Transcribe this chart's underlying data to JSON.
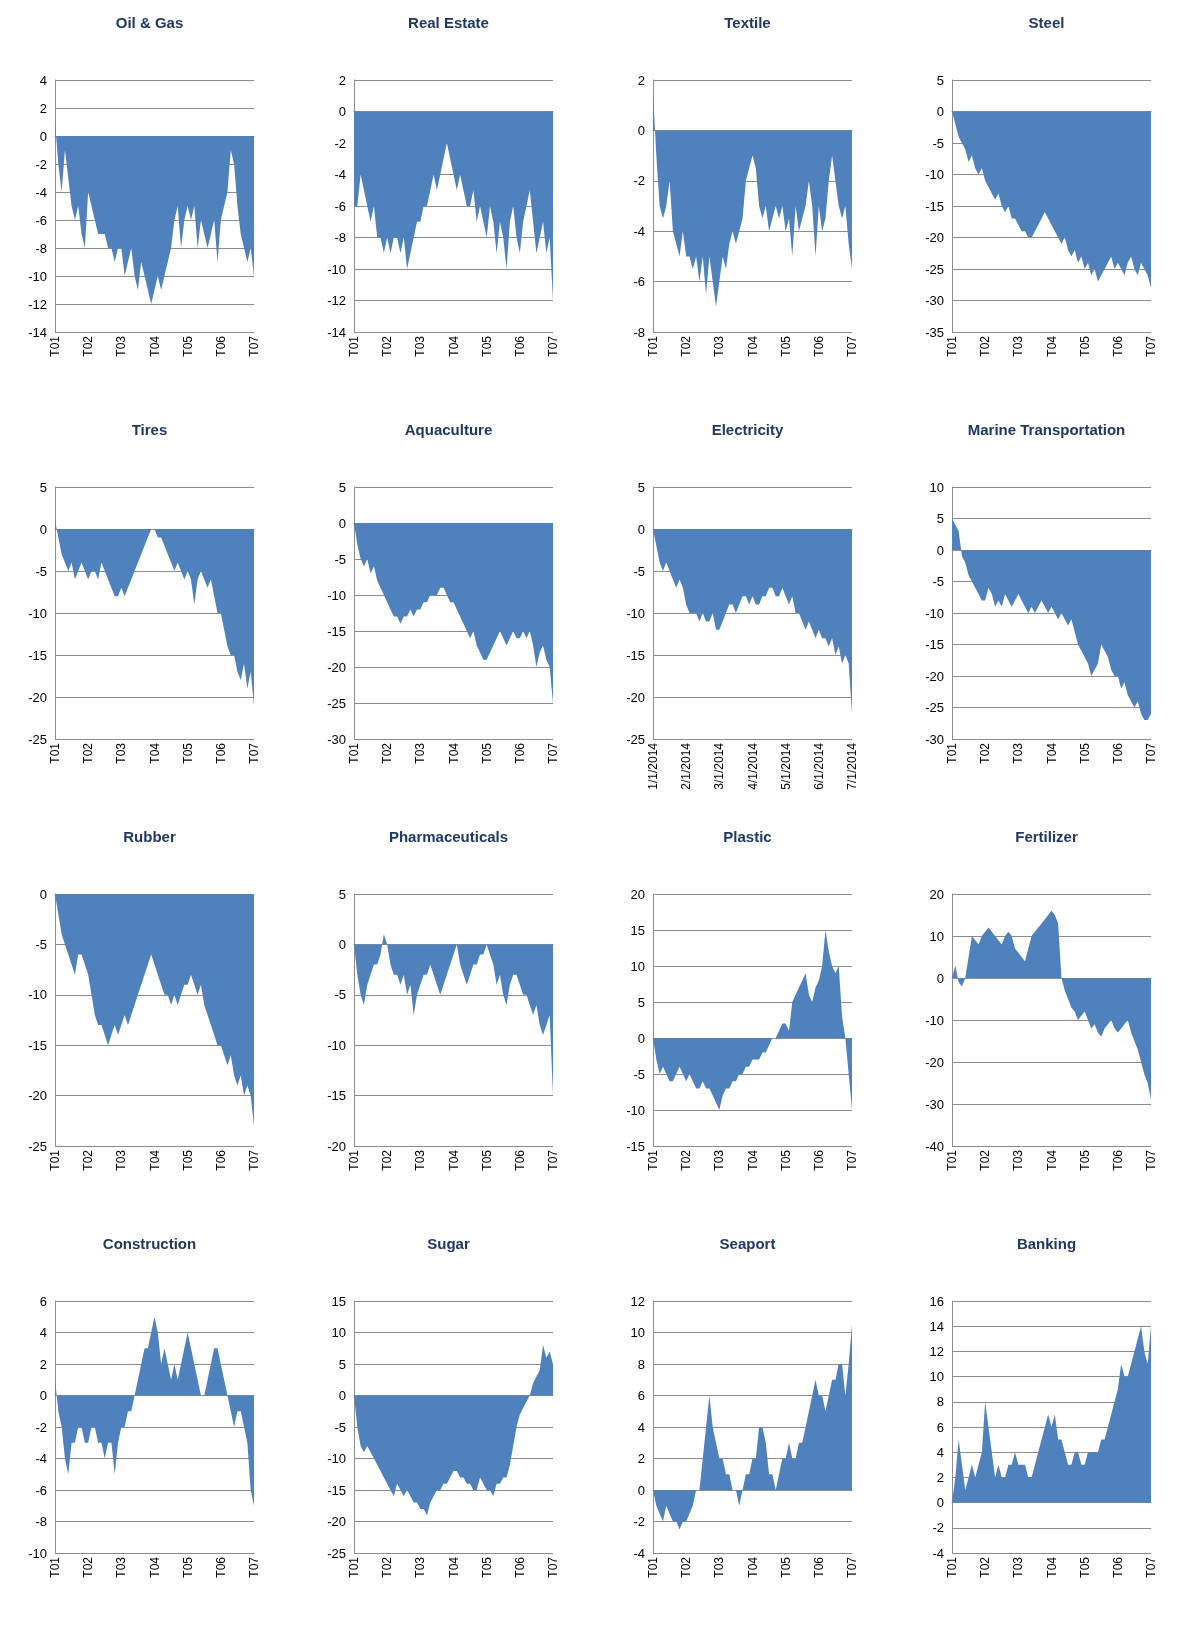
{
  "chart_data": [
    {
      "type": "area",
      "title": "Oil & Gas",
      "color": "#4f81bd",
      "grid": "y",
      "marker": "none",
      "ylim": [
        -14,
        4
      ],
      "yticks": [
        -14,
        -12,
        -10,
        -8,
        -6,
        -4,
        -2,
        0,
        2,
        4
      ],
      "categories": [
        "T01",
        null,
        null,
        null,
        null,
        null,
        null,
        null,
        null,
        null,
        "T02",
        null,
        null,
        null,
        null,
        null,
        null,
        null,
        null,
        null,
        "T03",
        null,
        null,
        null,
        null,
        null,
        null,
        null,
        null,
        null,
        "T04",
        null,
        null,
        null,
        null,
        null,
        null,
        null,
        null,
        null,
        "T05",
        null,
        null,
        null,
        null,
        null,
        null,
        null,
        null,
        null,
        "T06",
        null,
        null,
        null,
        null,
        null,
        null,
        null,
        null,
        null,
        "T07"
      ],
      "values": [
        1,
        -2,
        -4,
        -1,
        -3,
        -5,
        -6,
        -5,
        -7,
        -8,
        -4,
        -5,
        -6,
        -7,
        -7,
        -7,
        -8,
        -8,
        -9,
        -8,
        -8,
        -10,
        -9,
        -8,
        -10,
        -11,
        -9,
        -10,
        -11,
        -12,
        -11,
        -10,
        -11,
        -10,
        -9,
        -8,
        -6,
        -5,
        -8,
        -6,
        -5,
        -6,
        -5,
        -8,
        -6,
        -7,
        -8,
        -7,
        -6,
        -9,
        -6,
        -5,
        -4,
        -1,
        -2,
        -5,
        -7,
        -8,
        -9,
        -8,
        -10
      ]
    },
    {
      "type": "area",
      "title": "Real Estate",
      "color": "#4f81bd",
      "grid": "y",
      "marker": "none",
      "ylim": [
        -14,
        2
      ],
      "yticks": [
        -14,
        -12,
        -10,
        -8,
        -6,
        -4,
        -2,
        0,
        2
      ],
      "categories": [
        "T01",
        null,
        null,
        null,
        null,
        null,
        null,
        null,
        null,
        null,
        "T02",
        null,
        null,
        null,
        null,
        null,
        null,
        null,
        null,
        null,
        "T03",
        null,
        null,
        null,
        null,
        null,
        null,
        null,
        null,
        null,
        "T04",
        null,
        null,
        null,
        null,
        null,
        null,
        null,
        null,
        null,
        "T05",
        null,
        null,
        null,
        null,
        null,
        null,
        null,
        null,
        null,
        "T06",
        null,
        null,
        null,
        null,
        null,
        null,
        null,
        null,
        null,
        "T07"
      ],
      "values": [
        -6,
        -6,
        -4,
        -5,
        -6,
        -7,
        -6,
        -8,
        -8,
        -9,
        -8,
        -9,
        -8,
        -8,
        -9,
        -8,
        -10,
        -9,
        -8,
        -7,
        -7,
        -6,
        -6,
        -5,
        -4,
        -5,
        -4,
        -3,
        -2,
        -3,
        -4,
        -5,
        -4,
        -5,
        -6,
        -6,
        -5,
        -7,
        -6,
        -7,
        -8,
        -6,
        -7,
        -9,
        -7,
        -8,
        -10,
        -7,
        -6,
        -8,
        -9,
        -7,
        -6,
        -5,
        -7,
        -9,
        -8,
        -7,
        -9,
        -8,
        -12
      ]
    },
    {
      "type": "area",
      "title": "Textile",
      "color": "#4f81bd",
      "grid": "y",
      "marker": "none",
      "ylim": [
        -8,
        2
      ],
      "yticks": [
        -8,
        -6,
        -4,
        -2,
        0,
        2
      ],
      "categories": [
        "T01",
        null,
        null,
        null,
        null,
        null,
        null,
        null,
        null,
        null,
        "T02",
        null,
        null,
        null,
        null,
        null,
        null,
        null,
        null,
        null,
        "T03",
        null,
        null,
        null,
        null,
        null,
        null,
        null,
        null,
        null,
        "T04",
        null,
        null,
        null,
        null,
        null,
        null,
        null,
        null,
        null,
        "T05",
        null,
        null,
        null,
        null,
        null,
        null,
        null,
        null,
        null,
        "T06",
        null,
        null,
        null,
        null,
        null,
        null,
        null,
        null,
        null,
        "T07"
      ],
      "values": [
        1.5,
        -1,
        -3,
        -3.5,
        -3,
        -2,
        -4,
        -4.5,
        -5,
        -4,
        -5,
        -5,
        -5.5,
        -5,
        -6,
        -5,
        -6.5,
        -5,
        -6,
        -7,
        -6,
        -5,
        -5.5,
        -4.5,
        -4,
        -4.5,
        -4,
        -3.5,
        -2,
        -1.5,
        -1,
        -1.5,
        -3,
        -3.5,
        -3,
        -4,
        -3.5,
        -3,
        -3.5,
        -3,
        -4,
        -3.5,
        -5,
        -3,
        -4,
        -3.5,
        -3,
        -2,
        -3,
        -5,
        -3,
        -4,
        -3.5,
        -2,
        -1,
        -2,
        -3,
        -3.5,
        -3,
        -4.5,
        -5.5
      ]
    },
    {
      "type": "area",
      "title": "Steel",
      "color": "#4f81bd",
      "grid": "y",
      "marker": "none",
      "ylim": [
        -35,
        5
      ],
      "yticks": [
        -35,
        -30,
        -25,
        -20,
        -15,
        -10,
        -5,
        0,
        5
      ],
      "categories": [
        "T01",
        null,
        null,
        null,
        null,
        null,
        null,
        null,
        null,
        null,
        "T02",
        null,
        null,
        null,
        null,
        null,
        null,
        null,
        null,
        null,
        "T03",
        null,
        null,
        null,
        null,
        null,
        null,
        null,
        null,
        null,
        "T04",
        null,
        null,
        null,
        null,
        null,
        null,
        null,
        null,
        null,
        "T05",
        null,
        null,
        null,
        null,
        null,
        null,
        null,
        null,
        null,
        "T06",
        null,
        null,
        null,
        null,
        null,
        null,
        null,
        null,
        null,
        "T07"
      ],
      "values": [
        0,
        -2,
        -4,
        -5,
        -6,
        -8,
        -7,
        -9,
        -10,
        -9,
        -11,
        -12,
        -13,
        -14,
        -13,
        -15,
        -16,
        -15,
        -17,
        -17,
        -18,
        -19,
        -19,
        -20,
        -20,
        -19,
        -18,
        -17,
        -16,
        -17,
        -18,
        -19,
        -20,
        -21,
        -20,
        -22,
        -23,
        -22,
        -24,
        -23,
        -25,
        -24,
        -26,
        -25,
        -27,
        -26,
        -25,
        -24,
        -23,
        -25,
        -24,
        -25,
        -26,
        -24,
        -23,
        -25,
        -26,
        -24,
        -25,
        -26,
        -28
      ]
    },
    {
      "type": "area",
      "title": "Tires",
      "color": "#4f81bd",
      "grid": "y",
      "marker": "none",
      "ylim": [
        -25,
        5
      ],
      "yticks": [
        -25,
        -20,
        -15,
        -10,
        -5,
        0,
        5
      ],
      "categories": [
        "T01",
        null,
        null,
        null,
        null,
        null,
        null,
        null,
        null,
        null,
        "T02",
        null,
        null,
        null,
        null,
        null,
        null,
        null,
        null,
        null,
        "T03",
        null,
        null,
        null,
        null,
        null,
        null,
        null,
        null,
        null,
        "T04",
        null,
        null,
        null,
        null,
        null,
        null,
        null,
        null,
        null,
        "T05",
        null,
        null,
        null,
        null,
        null,
        null,
        null,
        null,
        null,
        "T06",
        null,
        null,
        null,
        null,
        null,
        null,
        null,
        null,
        null,
        "T07"
      ],
      "values": [
        1,
        -1,
        -3,
        -4,
        -5,
        -4,
        -6,
        -5,
        -4,
        -5,
        -6,
        -5,
        -5,
        -6,
        -4,
        -5,
        -6,
        -7,
        -8,
        -8,
        -7,
        -8,
        -7,
        -6,
        -5,
        -4,
        -3,
        -2,
        -1,
        0,
        0,
        -1,
        -1,
        -2,
        -3,
        -4,
        -5,
        -4,
        -5,
        -6,
        -5,
        -6,
        -9,
        -6,
        -5,
        -6,
        -7,
        -6,
        -8,
        -10,
        -10,
        -12,
        -14,
        -15,
        -15,
        -17,
        -18,
        -16,
        -19,
        -17,
        -21
      ]
    },
    {
      "type": "area",
      "title": "Aquaculture",
      "color": "#4f81bd",
      "grid": "y",
      "marker": "none",
      "ylim": [
        -30,
        5
      ],
      "yticks": [
        -30,
        -25,
        -20,
        -15,
        -10,
        -5,
        0,
        5
      ],
      "categories": [
        "T01",
        null,
        null,
        null,
        null,
        null,
        null,
        null,
        null,
        null,
        "T02",
        null,
        null,
        null,
        null,
        null,
        null,
        null,
        null,
        null,
        "T03",
        null,
        null,
        null,
        null,
        null,
        null,
        null,
        null,
        null,
        "T04",
        null,
        null,
        null,
        null,
        null,
        null,
        null,
        null,
        null,
        "T05",
        null,
        null,
        null,
        null,
        null,
        null,
        null,
        null,
        null,
        "T06",
        null,
        null,
        null,
        null,
        null,
        null,
        null,
        null,
        null,
        "T07"
      ],
      "values": [
        0,
        -3,
        -5,
        -6,
        -5,
        -7,
        -6,
        -8,
        -9,
        -10,
        -11,
        -12,
        -13,
        -13,
        -14,
        -13,
        -13,
        -12,
        -13,
        -12,
        -12,
        -11,
        -11,
        -10,
        -10,
        -10,
        -9,
        -9,
        -10,
        -11,
        -11,
        -12,
        -13,
        -14,
        -15,
        -16,
        -15,
        -17,
        -18,
        -19,
        -19,
        -18,
        -17,
        -16,
        -15,
        -16,
        -17,
        -16,
        -15,
        -16,
        -16,
        -15,
        -16,
        -15,
        -17,
        -20,
        -18,
        -17,
        -19,
        -20,
        -25
      ]
    },
    {
      "type": "area",
      "title": "Electricity",
      "color": "#4f81bd",
      "grid": "y",
      "marker": "none",
      "ylim": [
        -25,
        5
      ],
      "yticks": [
        -25,
        -20,
        -15,
        -10,
        -5,
        0,
        5
      ],
      "categories": [
        "1/1/2014",
        null,
        null,
        null,
        null,
        null,
        null,
        null,
        null,
        null,
        "2/1/2014",
        null,
        null,
        null,
        null,
        null,
        null,
        null,
        null,
        null,
        "3/1/2014",
        null,
        null,
        null,
        null,
        null,
        null,
        null,
        null,
        null,
        "4/1/2014",
        null,
        null,
        null,
        null,
        null,
        null,
        null,
        null,
        null,
        "5/1/2014",
        null,
        null,
        null,
        null,
        null,
        null,
        null,
        null,
        null,
        "6/1/2014",
        null,
        null,
        null,
        null,
        null,
        null,
        null,
        null,
        null,
        "7/1/2014"
      ],
      "values": [
        0,
        -2,
        -4,
        -5,
        -4,
        -5,
        -6,
        -7,
        -6,
        -7,
        -9,
        -10,
        -10,
        -10,
        -11,
        -10,
        -11,
        -11,
        -10,
        -12,
        -12,
        -11,
        -10,
        -9,
        -9,
        -10,
        -9,
        -8,
        -8,
        -9,
        -8,
        -9,
        -9,
        -8,
        -8,
        -7,
        -7,
        -8,
        -8,
        -7,
        -8,
        -9,
        -8,
        -10,
        -10,
        -11,
        -12,
        -11,
        -12,
        -13,
        -12,
        -13,
        -13,
        -14,
        -13,
        -15,
        -14,
        -16,
        -15,
        -16,
        -22
      ]
    },
    {
      "type": "area",
      "title": "Marine Transportation",
      "color": "#4f81bd",
      "grid": "y",
      "marker": "none",
      "ylim": [
        -30,
        10
      ],
      "yticks": [
        -30,
        -25,
        -20,
        -15,
        -10,
        -5,
        0,
        5,
        10
      ],
      "categories": [
        "T01",
        null,
        null,
        null,
        null,
        null,
        null,
        null,
        null,
        null,
        "T02",
        null,
        null,
        null,
        null,
        null,
        null,
        null,
        null,
        null,
        "T03",
        null,
        null,
        null,
        null,
        null,
        null,
        null,
        null,
        null,
        "T04",
        null,
        null,
        null,
        null,
        null,
        null,
        null,
        null,
        null,
        "T05",
        null,
        null,
        null,
        null,
        null,
        null,
        null,
        null,
        null,
        "T06",
        null,
        null,
        null,
        null,
        null,
        null,
        null,
        null,
        null,
        "T07"
      ],
      "values": [
        5,
        4,
        3,
        -1,
        -2,
        -4,
        -5,
        -6,
        -7,
        -8,
        -8,
        -6,
        -7,
        -9,
        -8,
        -9,
        -7,
        -8,
        -9,
        -8,
        -7,
        -8,
        -9,
        -10,
        -9,
        -10,
        -9,
        -8,
        -9,
        -10,
        -9,
        -10,
        -11,
        -10,
        -11,
        -12,
        -11,
        -13,
        -15,
        -16,
        -17,
        -18,
        -20,
        -19,
        -18,
        -15,
        -16,
        -17,
        -19,
        -20,
        -20,
        -22,
        -21,
        -23,
        -24,
        -25,
        -24,
        -26,
        -27,
        -27,
        -26
      ]
    },
    {
      "type": "area",
      "title": "Rubber",
      "color": "#4f81bd",
      "grid": "y",
      "marker": "none",
      "ylim": [
        -25,
        0
      ],
      "yticks": [
        -25,
        -20,
        -15,
        -10,
        -5,
        0
      ],
      "categories": [
        "T01",
        null,
        null,
        null,
        null,
        null,
        null,
        null,
        null,
        null,
        "T02",
        null,
        null,
        null,
        null,
        null,
        null,
        null,
        null,
        null,
        "T03",
        null,
        null,
        null,
        null,
        null,
        null,
        null,
        null,
        null,
        "T04",
        null,
        null,
        null,
        null,
        null,
        null,
        null,
        null,
        null,
        "T05",
        null,
        null,
        null,
        null,
        null,
        null,
        null,
        null,
        null,
        "T06",
        null,
        null,
        null,
        null,
        null,
        null,
        null,
        null,
        null,
        "T07"
      ],
      "values": [
        0,
        -2,
        -4,
        -5,
        -6,
        -7,
        -8,
        -6,
        -6,
        -7,
        -8,
        -10,
        -12,
        -13,
        -13,
        -14,
        -15,
        -14,
        -13,
        -14,
        -13,
        -12,
        -13,
        -12,
        -11,
        -10,
        -9,
        -8,
        -7,
        -6,
        -7,
        -8,
        -9,
        -10,
        -10,
        -11,
        -10,
        -11,
        -10,
        -9,
        -9,
        -8,
        -9,
        -10,
        -9,
        -11,
        -12,
        -13,
        -14,
        -15,
        -15,
        -16,
        -17,
        -16,
        -18,
        -19,
        -18,
        -20,
        -19,
        -20,
        -23
      ]
    },
    {
      "type": "area",
      "title": "Pharmaceuticals",
      "color": "#4f81bd",
      "grid": "y",
      "marker": "none",
      "ylim": [
        -20,
        5
      ],
      "yticks": [
        -20,
        -15,
        -10,
        -5,
        0,
        5
      ],
      "categories": [
        "T01",
        null,
        null,
        null,
        null,
        null,
        null,
        null,
        null,
        null,
        "T02",
        null,
        null,
        null,
        null,
        null,
        null,
        null,
        null,
        null,
        "T03",
        null,
        null,
        null,
        null,
        null,
        null,
        null,
        null,
        null,
        "T04",
        null,
        null,
        null,
        null,
        null,
        null,
        null,
        null,
        null,
        "T05",
        null,
        null,
        null,
        null,
        null,
        null,
        null,
        null,
        null,
        "T06",
        null,
        null,
        null,
        null,
        null,
        null,
        null,
        null,
        null,
        "T07"
      ],
      "values": [
        0,
        -3,
        -5,
        -6,
        -4,
        -3,
        -2,
        -2,
        -1,
        1,
        0,
        -2,
        -3,
        -3,
        -4,
        -3,
        -5,
        -4,
        -7,
        -5,
        -4,
        -3,
        -3,
        -2,
        -3,
        -4,
        -5,
        -4,
        -3,
        -2,
        -1,
        0,
        -2,
        -3,
        -4,
        -3,
        -2,
        -2,
        -1,
        -1,
        0,
        -1,
        -2,
        -4,
        -3,
        -5,
        -6,
        -4,
        -3,
        -3,
        -4,
        -5,
        -5,
        -6,
        -7,
        -6,
        -8,
        -9,
        -8,
        -7,
        -15
      ]
    },
    {
      "type": "area",
      "title": "Plastic",
      "color": "#4f81bd",
      "grid": "y",
      "marker": "none",
      "ylim": [
        -15,
        20
      ],
      "yticks": [
        -15,
        -10,
        -5,
        0,
        5,
        10,
        15,
        20
      ],
      "categories": [
        "T01",
        null,
        null,
        null,
        null,
        null,
        null,
        null,
        null,
        null,
        "T02",
        null,
        null,
        null,
        null,
        null,
        null,
        null,
        null,
        null,
        "T03",
        null,
        null,
        null,
        null,
        null,
        null,
        null,
        null,
        null,
        "T04",
        null,
        null,
        null,
        null,
        null,
        null,
        null,
        null,
        null,
        "T05",
        null,
        null,
        null,
        null,
        null,
        null,
        null,
        null,
        null,
        "T06",
        null,
        null,
        null,
        null,
        null,
        null,
        null,
        null,
        null,
        "T07"
      ],
      "values": [
        0,
        -3,
        -5,
        -4,
        -5,
        -6,
        -6,
        -5,
        -4,
        -5,
        -6,
        -5,
        -6,
        -7,
        -7,
        -6,
        -7,
        -7,
        -8,
        -9,
        -10,
        -8,
        -7,
        -7,
        -6,
        -6,
        -5,
        -5,
        -4,
        -4,
        -3,
        -3,
        -3,
        -2,
        -2,
        -1,
        0,
        0,
        1,
        2,
        2,
        1,
        5,
        6,
        7,
        8,
        9,
        6,
        5,
        7,
        8,
        10,
        15,
        12,
        10,
        9,
        10,
        3,
        0,
        -5,
        -10
      ]
    },
    {
      "type": "area",
      "title": "Fertilizer",
      "color": "#4f81bd",
      "grid": "y",
      "marker": "none",
      "ylim": [
        -40,
        20
      ],
      "yticks": [
        -40,
        -30,
        -20,
        -10,
        0,
        10,
        20
      ],
      "categories": [
        "T01",
        null,
        null,
        null,
        null,
        null,
        null,
        null,
        null,
        null,
        "T02",
        null,
        null,
        null,
        null,
        null,
        null,
        null,
        null,
        null,
        "T03",
        null,
        null,
        null,
        null,
        null,
        null,
        null,
        null,
        null,
        "T04",
        null,
        null,
        null,
        null,
        null,
        null,
        null,
        null,
        null,
        "T05",
        null,
        null,
        null,
        null,
        null,
        null,
        null,
        null,
        null,
        "T06",
        null,
        null,
        null,
        null,
        null,
        null,
        null,
        null,
        null,
        "T07"
      ],
      "values": [
        0,
        3,
        -1,
        -2,
        0,
        5,
        10,
        9,
        8,
        10,
        11,
        12,
        11,
        10,
        9,
        8,
        10,
        11,
        10,
        7,
        6,
        5,
        4,
        7,
        10,
        11,
        12,
        13,
        14,
        15,
        16,
        15,
        13,
        0,
        -3,
        -5,
        -7,
        -8,
        -10,
        -9,
        -8,
        -10,
        -12,
        -11,
        -13,
        -14,
        -12,
        -11,
        -10,
        -12,
        -13,
        -12,
        -11,
        -10,
        -13,
        -15,
        -17,
        -20,
        -23,
        -25,
        -29
      ]
    },
    {
      "type": "area",
      "title": "Construction",
      "color": "#4f81bd",
      "grid": "y",
      "marker": "none",
      "ylim": [
        -10,
        6
      ],
      "yticks": [
        -10,
        -8,
        -6,
        -4,
        -2,
        0,
        2,
        4,
        6
      ],
      "categories": [
        "T01",
        null,
        null,
        null,
        null,
        null,
        null,
        null,
        null,
        null,
        "T02",
        null,
        null,
        null,
        null,
        null,
        null,
        null,
        null,
        null,
        "T03",
        null,
        null,
        null,
        null,
        null,
        null,
        null,
        null,
        null,
        "T04",
        null,
        null,
        null,
        null,
        null,
        null,
        null,
        null,
        null,
        "T05",
        null,
        null,
        null,
        null,
        null,
        null,
        null,
        null,
        null,
        "T06",
        null,
        null,
        null,
        null,
        null,
        null,
        null,
        null,
        null,
        "T07"
      ],
      "values": [
        1,
        -1,
        -2,
        -4,
        -5,
        -3,
        -3,
        -2,
        -2,
        -3,
        -3,
        -2,
        -2,
        -3,
        -3,
        -4,
        -3,
        -3,
        -5,
        -3,
        -2,
        -2,
        -1,
        -1,
        0,
        1,
        2,
        3,
        3,
        4,
        5,
        4,
        2,
        3,
        2,
        1,
        2,
        1,
        2,
        3,
        4,
        3,
        2,
        1,
        0,
        0,
        1,
        2,
        3,
        3,
        2,
        1,
        0,
        -1,
        -2,
        -1,
        -1,
        -2,
        -3,
        -6,
        -7
      ]
    },
    {
      "type": "area",
      "title": "Sugar",
      "color": "#4f81bd",
      "grid": "y",
      "marker": "none",
      "ylim": [
        -25,
        15
      ],
      "yticks": [
        -25,
        -20,
        -15,
        -10,
        -5,
        0,
        5,
        10,
        15
      ],
      "categories": [
        "T01",
        null,
        null,
        null,
        null,
        null,
        null,
        null,
        null,
        null,
        "T02",
        null,
        null,
        null,
        null,
        null,
        null,
        null,
        null,
        null,
        "T03",
        null,
        null,
        null,
        null,
        null,
        null,
        null,
        null,
        null,
        "T04",
        null,
        null,
        null,
        null,
        null,
        null,
        null,
        null,
        null,
        "T05",
        null,
        null,
        null,
        null,
        null,
        null,
        null,
        null,
        null,
        "T06",
        null,
        null,
        null,
        null,
        null,
        null,
        null,
        null,
        null,
        "T07"
      ],
      "values": [
        0,
        -5,
        -8,
        -9,
        -8,
        -9,
        -10,
        -11,
        -12,
        -13,
        -14,
        -15,
        -16,
        -14,
        -15,
        -16,
        -15,
        -16,
        -17,
        -17,
        -18,
        -18,
        -19,
        -17,
        -16,
        -15,
        -15,
        -14,
        -14,
        -13,
        -12,
        -12,
        -13,
        -13,
        -14,
        -14,
        -15,
        -15,
        -13,
        -14,
        -15,
        -15,
        -16,
        -14,
        -14,
        -13,
        -13,
        -11,
        -8,
        -5,
        -3,
        -2,
        -1,
        0,
        2,
        3,
        4,
        8,
        6,
        7,
        5
      ]
    },
    {
      "type": "area",
      "title": "Seaport",
      "color": "#4f81bd",
      "grid": "y",
      "marker": "none",
      "ylim": [
        -4,
        12
      ],
      "yticks": [
        -4,
        -2,
        0,
        2,
        4,
        6,
        8,
        10,
        12
      ],
      "categories": [
        "T01",
        null,
        null,
        null,
        null,
        null,
        null,
        null,
        null,
        null,
        "T02",
        null,
        null,
        null,
        null,
        null,
        null,
        null,
        null,
        null,
        "T03",
        null,
        null,
        null,
        null,
        null,
        null,
        null,
        null,
        null,
        "T04",
        null,
        null,
        null,
        null,
        null,
        null,
        null,
        null,
        null,
        "T05",
        null,
        null,
        null,
        null,
        null,
        null,
        null,
        null,
        null,
        "T06",
        null,
        null,
        null,
        null,
        null,
        null,
        null,
        null,
        null,
        "T07"
      ],
      "values": [
        0,
        -1,
        -1.5,
        -2,
        -1,
        -1.5,
        -2,
        -2,
        -2.5,
        -2,
        -2,
        -1.5,
        -1,
        0,
        0,
        2,
        4,
        6,
        4,
        3,
        2,
        2,
        1,
        1,
        0,
        0,
        -1,
        0,
        1,
        1,
        2,
        2,
        4,
        4,
        3,
        1,
        1,
        0,
        1,
        2,
        2,
        3,
        2,
        2,
        3,
        3,
        4,
        5,
        6,
        7,
        6,
        6,
        5,
        6,
        7,
        7,
        8,
        8,
        6,
        8,
        10.5
      ]
    },
    {
      "type": "area",
      "title": "Banking",
      "color": "#4f81bd",
      "grid": "y",
      "marker": "none",
      "ylim": [
        -4,
        16
      ],
      "yticks": [
        -4,
        -2,
        0,
        2,
        4,
        6,
        8,
        10,
        12,
        14,
        16
      ],
      "categories": [
        "T01",
        null,
        null,
        null,
        null,
        null,
        null,
        null,
        null,
        null,
        "T02",
        null,
        null,
        null,
        null,
        null,
        null,
        null,
        null,
        null,
        "T03",
        null,
        null,
        null,
        null,
        null,
        null,
        null,
        null,
        null,
        "T04",
        null,
        null,
        null,
        null,
        null,
        null,
        null,
        null,
        null,
        "T05",
        null,
        null,
        null,
        null,
        null,
        null,
        null,
        null,
        null,
        "T06",
        null,
        null,
        null,
        null,
        null,
        null,
        null,
        null,
        null,
        "T07"
      ],
      "values": [
        0,
        2,
        5,
        3,
        1,
        2,
        3,
        2,
        3,
        4,
        8,
        6,
        4,
        2,
        3,
        2,
        2,
        3,
        3,
        4,
        3,
        3,
        3,
        2,
        2,
        3,
        4,
        5,
        6,
        7,
        6,
        7,
        5,
        5,
        4,
        3,
        3,
        4,
        4,
        3,
        3,
        4,
        4,
        4,
        4,
        5,
        5,
        6,
        7,
        8,
        9,
        11,
        10,
        10,
        11,
        12,
        13,
        14,
        12,
        11,
        14
      ]
    }
  ]
}
